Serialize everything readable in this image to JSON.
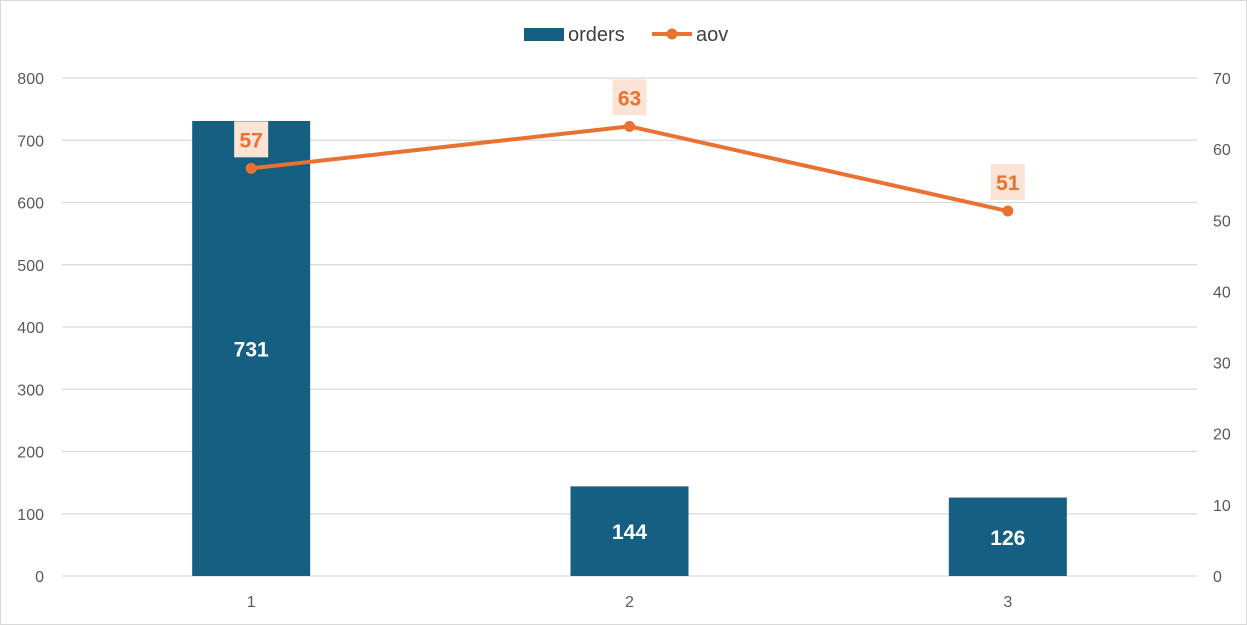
{
  "chart_data": {
    "type": "bar+line",
    "categories": [
      "1",
      "2",
      "3"
    ],
    "series": [
      {
        "name": "orders",
        "type": "bar",
        "axis": "left",
        "values": [
          731,
          144,
          126
        ],
        "color": "#156082"
      },
      {
        "name": "aov",
        "type": "line",
        "axis": "right",
        "values": [
          57.3,
          63.2,
          51.3
        ],
        "labels": [
          "57",
          "63",
          "51"
        ],
        "color": "#e97132"
      }
    ],
    "y_left": {
      "min": 0,
      "max": 800,
      "step": 100,
      "ticks": [
        "0",
        "100",
        "200",
        "300",
        "400",
        "500",
        "600",
        "700",
        "800"
      ]
    },
    "y_right": {
      "min": 0,
      "max": 70,
      "step": 10,
      "ticks": [
        "0",
        "10",
        "20",
        "30",
        "40",
        "50",
        "60",
        "70"
      ]
    },
    "grid": true,
    "legend": "top-center",
    "label_bg": "#fbe3d6",
    "grid_color": "#d9d9d9"
  }
}
